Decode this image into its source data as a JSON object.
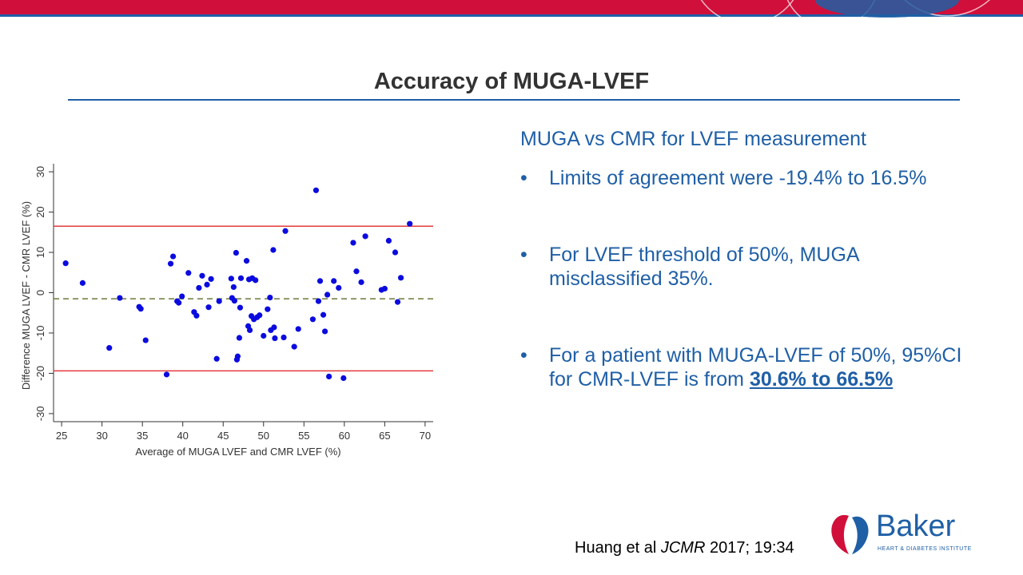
{
  "slide": {
    "title": "Accuracy of MUGA-LVEF"
  },
  "colors": {
    "brand_red": "#d0103a",
    "brand_blue": "#1f5fa6",
    "text_blue": "#1f5fa6",
    "limit_line": "#e23b3b",
    "mean_line": "#6b7a3a",
    "point": "#0b0be0"
  },
  "panel": {
    "heading": "MUGA vs CMR for LVEF measurement",
    "bullets": [
      {
        "text": "Limits of agreement were -19.4% to 16.5%"
      },
      {
        "text": "For LVEF threshold of 50%, MUGA misclassified 35%."
      },
      {
        "text": "For a patient with MUGA-LVEF of 50%, 95%CI for CMR-LVEF is from ",
        "emphasis": "30.6% to 66.5%"
      }
    ]
  },
  "citation": {
    "authors": "Huang et al ",
    "journal": "JCMR",
    "ref": " 2017; 19:34"
  },
  "logo": {
    "name": "Baker",
    "tagline": "HEART & DIABETES INSTITUTE"
  },
  "chart_data": {
    "type": "scatter",
    "title": "",
    "xlabel": "Average of MUGA LVEF and CMR LVEF (%)",
    "ylabel": "Difference MUGA LVEF - CMR LVEF (%)",
    "xlim": [
      24,
      71
    ],
    "ylim": [
      -32,
      32
    ],
    "x_ticks": [
      25,
      30,
      35,
      40,
      45,
      50,
      55,
      60,
      65,
      70
    ],
    "y_ticks": [
      -30,
      -20,
      -10,
      0,
      10,
      20,
      30
    ],
    "reference_lines": [
      {
        "name": "upper limit of agreement",
        "y": 16.5,
        "style": "solid"
      },
      {
        "name": "mean difference",
        "y": -1.5,
        "style": "dashed"
      },
      {
        "name": "lower limit of agreement",
        "y": -19.4,
        "style": "solid"
      }
    ],
    "points": [
      [
        25.5,
        7.3
      ],
      [
        27.6,
        2.4
      ],
      [
        30.9,
        -13.7
      ],
      [
        32.2,
        -1.3
      ],
      [
        34.6,
        -3.5
      ],
      [
        34.8,
        -4.0
      ],
      [
        35.4,
        -11.8
      ],
      [
        38.0,
        -20.3
      ],
      [
        38.5,
        7.2
      ],
      [
        38.8,
        9.0
      ],
      [
        39.3,
        -2.1
      ],
      [
        39.5,
        -2.5
      ],
      [
        39.9,
        -0.9
      ],
      [
        40.7,
        4.9
      ],
      [
        41.4,
        -4.8
      ],
      [
        41.7,
        -5.7
      ],
      [
        42.0,
        1.2
      ],
      [
        42.4,
        4.2
      ],
      [
        43.0,
        2.0
      ],
      [
        43.2,
        -3.6
      ],
      [
        43.5,
        3.4
      ],
      [
        44.2,
        -16.4
      ],
      [
        44.5,
        -2.1
      ],
      [
        46.0,
        3.5
      ],
      [
        46.1,
        -1.3
      ],
      [
        46.4,
        -2.0
      ],
      [
        46.3,
        1.4
      ],
      [
        46.6,
        9.9
      ],
      [
        46.7,
        -16.6
      ],
      [
        46.8,
        -15.8
      ],
      [
        47.0,
        -11.2
      ],
      [
        47.1,
        -3.7
      ],
      [
        47.2,
        3.6
      ],
      [
        47.9,
        7.9
      ],
      [
        48.1,
        -8.3
      ],
      [
        48.2,
        3.3
      ],
      [
        48.3,
        -9.3
      ],
      [
        48.5,
        -5.8
      ],
      [
        48.6,
        3.6
      ],
      [
        48.8,
        -6.6
      ],
      [
        49.0,
        3.1
      ],
      [
        49.2,
        -6.1
      ],
      [
        49.5,
        -5.6
      ],
      [
        50.0,
        -10.7
      ],
      [
        50.5,
        -4.1
      ],
      [
        50.8,
        -1.2
      ],
      [
        50.9,
        -9.3
      ],
      [
        51.2,
        10.6
      ],
      [
        51.3,
        -8.6
      ],
      [
        51.4,
        -11.3
      ],
      [
        52.5,
        -11.1
      ],
      [
        52.7,
        15.3
      ],
      [
        53.8,
        -13.4
      ],
      [
        54.3,
        -9.0
      ],
      [
        56.1,
        -6.6
      ],
      [
        56.5,
        25.4
      ],
      [
        56.8,
        -2.1
      ],
      [
        57.0,
        2.9
      ],
      [
        57.4,
        -5.5
      ],
      [
        57.6,
        -9.6
      ],
      [
        57.9,
        -0.5
      ],
      [
        58.1,
        -20.8
      ],
      [
        58.7,
        2.9
      ],
      [
        59.3,
        1.2
      ],
      [
        59.9,
        -21.2
      ],
      [
        61.1,
        12.4
      ],
      [
        61.5,
        5.3
      ],
      [
        62.1,
        2.6
      ],
      [
        62.6,
        14.0
      ],
      [
        64.6,
        0.7
      ],
      [
        65.0,
        1.0
      ],
      [
        65.5,
        12.9
      ],
      [
        66.3,
        10.0
      ],
      [
        66.6,
        -2.3
      ],
      [
        67.0,
        3.7
      ],
      [
        68.1,
        17.1
      ]
    ]
  }
}
